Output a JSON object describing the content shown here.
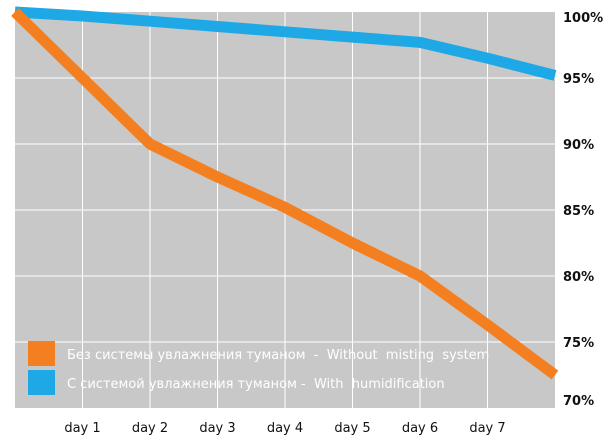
{
  "chart_data": {
    "type": "line",
    "title": "",
    "xlabel": "",
    "ylabel": "",
    "x": [
      0,
      1,
      2,
      3,
      4,
      5,
      6,
      7,
      8
    ],
    "x_tick_labels": [
      "day 1",
      "day 2",
      "day 3",
      "day 4",
      "day 5",
      "day 6",
      "day 7"
    ],
    "x_tick_positions": [
      1,
      2,
      3,
      4,
      5,
      6,
      7
    ],
    "ylim": [
      70,
      100
    ],
    "y_ticks": [
      70,
      75,
      80,
      85,
      90,
      95,
      100
    ],
    "y_tick_labels": [
      "70%",
      "75%",
      "80%",
      "85%",
      "90%",
      "95%",
      "100%"
    ],
    "grid": true,
    "legend_position": "bottom-left",
    "series": [
      {
        "name": "Без системы увлажнения туманом  -  Without  misting  system",
        "color": "#f47f20",
        "values": [
          100,
          95,
          90,
          87.5,
          85.2,
          82.5,
          80,
          76.3,
          72.5
        ]
      },
      {
        "name": "С системой увлажнения туманом -  With  humidification",
        "color": "#1ea8e6",
        "values": [
          100,
          99.7,
          99.3,
          98.9,
          98.5,
          98.1,
          97.7,
          96.5,
          95.2
        ]
      }
    ],
    "colors": {
      "plot_background": "#c8c8c8",
      "gridline": "#ffffff",
      "axis_text": "#111111"
    }
  }
}
